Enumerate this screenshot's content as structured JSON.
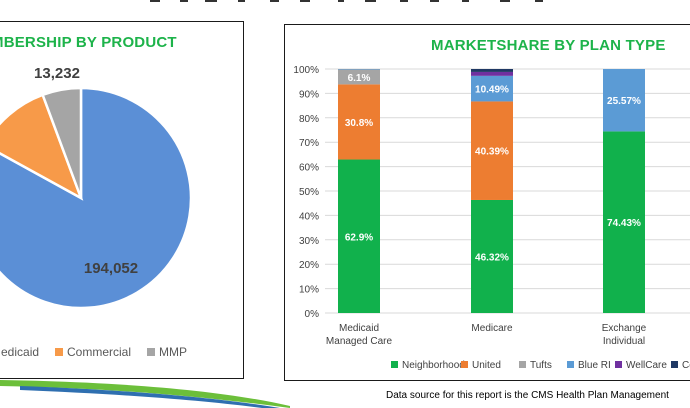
{
  "colors": {
    "title_green": "#1db34a",
    "neighborhood": "#11b14c",
    "united": "#ed7d31",
    "tufts": "#a5a5a5",
    "blue_ri": "#5b9bd5",
    "wellcare": "#7030a0",
    "co": "#1f3864",
    "pie_blue": "#5b8fd6",
    "pie_orange": "#f79a49",
    "pie_gray": "#a5a5a5",
    "swoosh_green": "#6cbf3a",
    "swoosh_blue": "#2f6fb0"
  },
  "chart_data": [
    {
      "type": "pie",
      "title": "MEMBERSHIP BY PRODUCT",
      "title_visible": "MBERSHIP BY PRODUCT",
      "slices": [
        {
          "name": "Medicaid",
          "legend_visible": "edicaid",
          "value": 194052,
          "label": "194,052"
        },
        {
          "name": "Commercial",
          "legend_visible": "Commercial",
          "value": 26500,
          "label": ""
        },
        {
          "name": "MMP",
          "legend_visible": "MMP",
          "value": 13232,
          "label": "13,232"
        }
      ],
      "legend_placement": "bottom"
    },
    {
      "type": "bar",
      "stacked": true,
      "title": "MARKETSHARE BY PLAN TYPE",
      "categories": [
        {
          "line1": "Medicaid",
          "line2": "Managed Care"
        },
        {
          "line1": "Medicare",
          "line2": ""
        },
        {
          "line1": "Exchange",
          "line2": "Individual"
        }
      ],
      "ylim": [
        0,
        100
      ],
      "yticks": [
        "0%",
        "10%",
        "20%",
        "30%",
        "40%",
        "50%",
        "60%",
        "70%",
        "80%",
        "90%",
        "100%"
      ],
      "series": [
        {
          "name": "Neighborhood",
          "color_key": "neighborhood",
          "values": [
            62.9,
            46.32,
            74.43
          ],
          "labels": [
            "62.9%",
            "46.32%",
            "74.43%"
          ]
        },
        {
          "name": "United",
          "color_key": "united",
          "values": [
            30.8,
            40.39,
            0
          ],
          "labels": [
            "30.8%",
            "40.39%",
            ""
          ]
        },
        {
          "name": "Tufts",
          "color_key": "tufts",
          "values": [
            6.1,
            0,
            0
          ],
          "labels": [
            "6.1%",
            "",
            ""
          ]
        },
        {
          "name": "Blue RI",
          "color_key": "blue_ri",
          "values": [
            0.2,
            10.49,
            25.57
          ],
          "labels": [
            "",
            "10.49%",
            "25.57%"
          ]
        },
        {
          "name": "WellCare",
          "color_key": "wellcare",
          "values": [
            0,
            1.6,
            0
          ],
          "labels": [
            "",
            "",
            ""
          ]
        },
        {
          "name": "Co",
          "legend_visible": "Co",
          "color_key": "co",
          "values": [
            0,
            1.2,
            0
          ],
          "labels": [
            "",
            "",
            ""
          ]
        }
      ],
      "legend_placement": "bottom"
    }
  ],
  "footer": {
    "note": "Data source for this report is the CMS Health Plan Management"
  }
}
